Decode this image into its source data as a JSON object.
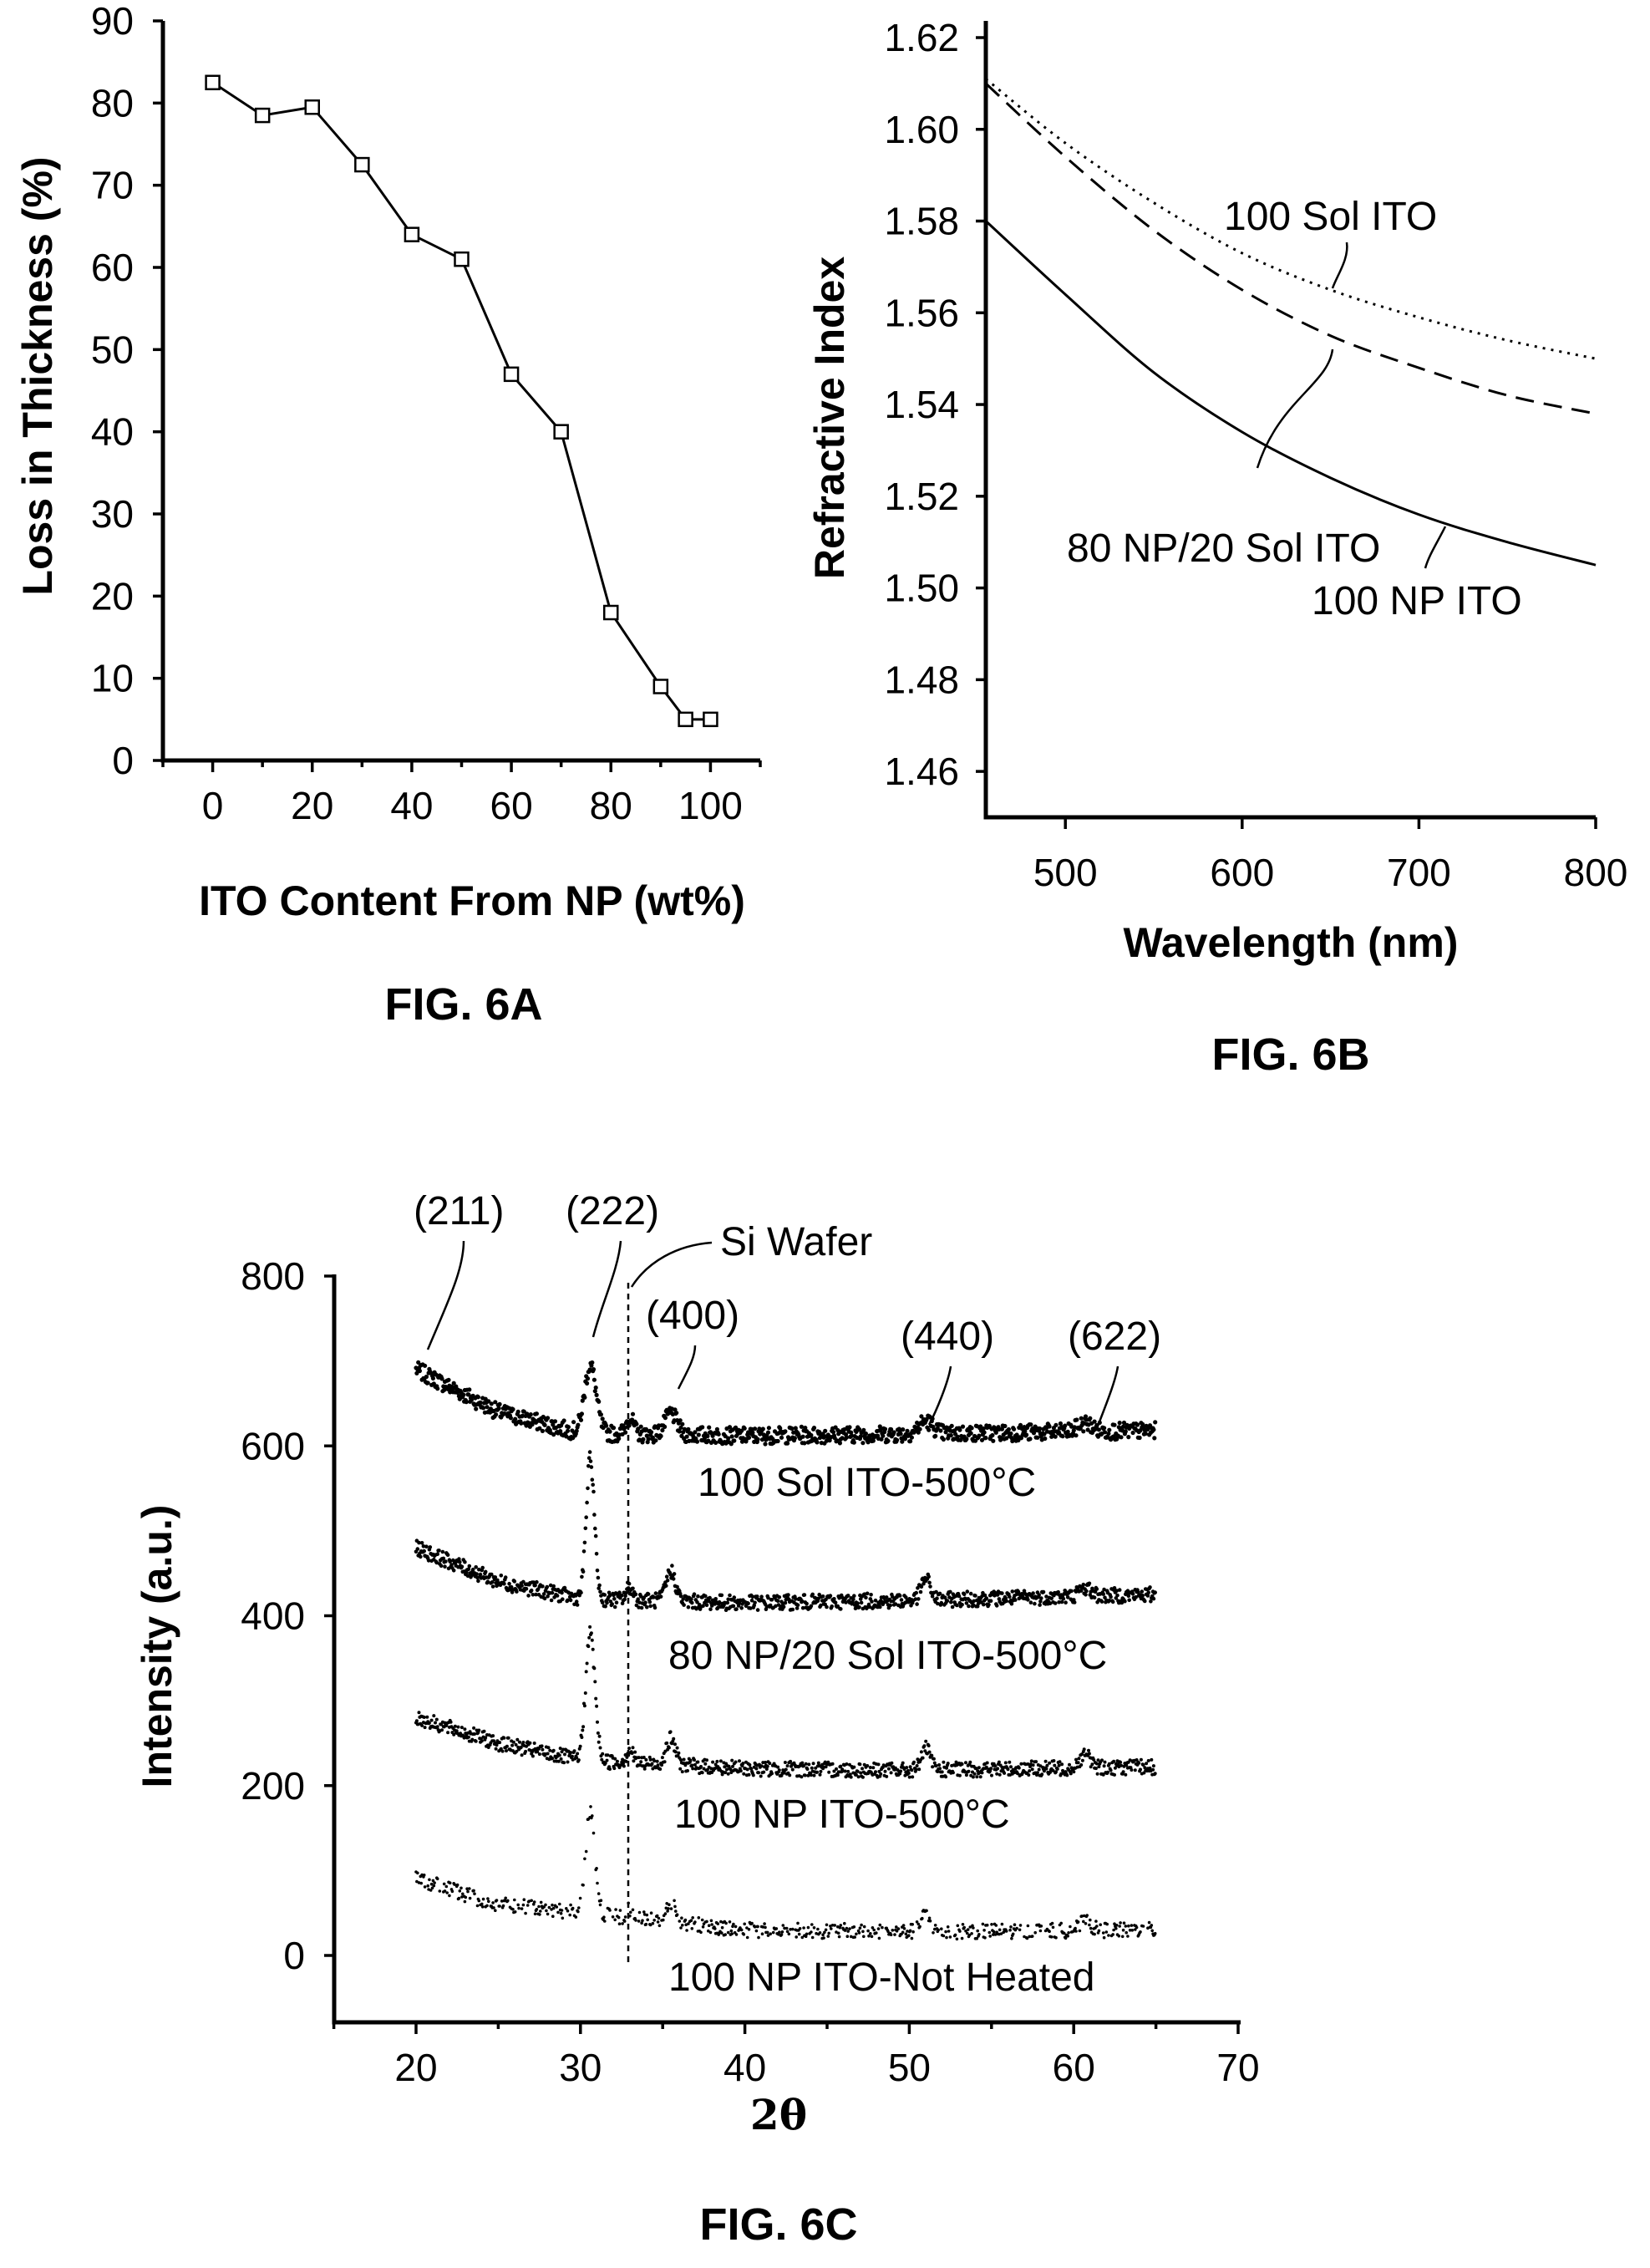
{
  "colors": {
    "ink": "#000000",
    "background": "#ffffff"
  },
  "chart_data": [
    {
      "id": "fig6a",
      "type": "line",
      "figure_label": "FIG. 6A",
      "xlabel": "ITO Content From NP (wt%)",
      "ylabel": "Loss in Thickness (%)",
      "xlim": [
        -10,
        110
      ],
      "ylim": [
        0,
        90
      ],
      "xticks": [
        0,
        20,
        40,
        60,
        80,
        100
      ],
      "yticks": [
        0,
        10,
        20,
        30,
        40,
        50,
        60,
        70,
        80,
        90
      ],
      "grid": false,
      "series": [
        {
          "marker": "square",
          "x": [
            0,
            10,
            20,
            30,
            40,
            50,
            60,
            70,
            80,
            90,
            95,
            100
          ],
          "y": [
            82.5,
            78.5,
            79.5,
            72.5,
            64,
            61,
            47,
            40,
            18,
            9,
            5,
            5
          ]
        }
      ]
    },
    {
      "id": "fig6b",
      "type": "line",
      "figure_label": "FIG. 6B",
      "xlabel": "Wavelength (nm)",
      "ylabel": "Refractive Index",
      "xlim": [
        455,
        800
      ],
      "ylim": [
        1.45,
        1.62
      ],
      "xticks": [
        500,
        600,
        700,
        800
      ],
      "yticks": [
        1.46,
        1.48,
        1.5,
        1.52,
        1.54,
        1.56,
        1.58,
        1.6,
        1.62
      ],
      "grid": false,
      "series": [
        {
          "name": "100 Sol ITO",
          "style": "dotted",
          "x": [
            455,
            500,
            550,
            600,
            650,
            700,
            750,
            800
          ],
          "y": [
            1.611,
            1.597,
            1.584,
            1.573,
            1.565,
            1.559,
            1.554,
            1.55
          ]
        },
        {
          "name": "80 NP/20 Sol ITO",
          "style": "dashed",
          "x": [
            455,
            500,
            550,
            600,
            650,
            700,
            750,
            800
          ],
          "y": [
            1.61,
            1.594,
            1.578,
            1.565,
            1.555,
            1.548,
            1.542,
            1.538
          ]
        },
        {
          "name": "100 NP ITO",
          "style": "solid",
          "x": [
            455,
            500,
            550,
            600,
            650,
            700,
            750,
            800
          ],
          "y": [
            1.58,
            1.564,
            1.547,
            1.534,
            1.524,
            1.516,
            1.51,
            1.505
          ]
        }
      ]
    },
    {
      "id": "fig6c",
      "type": "line",
      "figure_label": "FIG. 6C",
      "xlabel": "2θ",
      "ylabel": "Intensity (a.u.)",
      "xlim": [
        15,
        70
      ],
      "ylim": [
        -80,
        820
      ],
      "xticks": [
        20,
        30,
        40,
        50,
        60,
        70
      ],
      "yticks": [
        0,
        200,
        400,
        600,
        800
      ],
      "grid": false,
      "series": [
        {
          "name": "100 Sol ITO-500°C",
          "baseline": [
            690,
            640,
            615,
            612,
            614,
            618
          ],
          "baseline_x": [
            20,
            25,
            30,
            40,
            50,
            65
          ],
          "peaks": [
            [
              30.6,
              80,
              0.5
            ],
            [
              33.0,
              20,
              0.3
            ],
            [
              35.5,
              25,
              0.5
            ],
            [
              51.0,
              15,
              0.6
            ],
            [
              60.7,
              10,
              0.6
            ]
          ]
        },
        {
          "name": "80 NP/20 Sol ITO-500°C",
          "baseline": [
            480,
            440,
            420,
            415,
            418,
            425
          ],
          "baseline_x": [
            20,
            25,
            30,
            40,
            50,
            65
          ],
          "peaks": [
            [
              30.6,
              165,
              0.35
            ],
            [
              33.0,
              15,
              0.3
            ],
            [
              35.5,
              35,
              0.4
            ],
            [
              51.0,
              25,
              0.4
            ],
            [
              60.7,
              10,
              0.5
            ]
          ]
        },
        {
          "name": "100 NP ITO-500°C",
          "baseline": [
            280,
            250,
            230,
            220,
            218,
            222
          ],
          "baseline_x": [
            20,
            25,
            30,
            40,
            50,
            65
          ],
          "peaks": [
            [
              30.6,
              150,
              0.4
            ],
            [
              33.0,
              15,
              0.3
            ],
            [
              35.5,
              30,
              0.4
            ],
            [
              51.0,
              25,
              0.4
            ],
            [
              60.7,
              15,
              0.5
            ]
          ]
        },
        {
          "name": "100 NP ITO-Not Heated",
          "baseline": [
            90,
            60,
            50,
            30,
            28,
            30
          ],
          "baseline_x": [
            20,
            25,
            30,
            40,
            50,
            65
          ],
          "peaks": [
            [
              30.6,
              120,
              0.4
            ],
            [
              33.0,
              10,
              0.3
            ],
            [
              35.5,
              25,
              0.4
            ],
            [
              51.0,
              20,
              0.4
            ],
            [
              60.7,
              10,
              0.5
            ]
          ]
        }
      ],
      "annotations": [
        "(211)",
        "(222)",
        "Si Wafer",
        "(400)",
        "(440)",
        "(622)"
      ]
    }
  ]
}
